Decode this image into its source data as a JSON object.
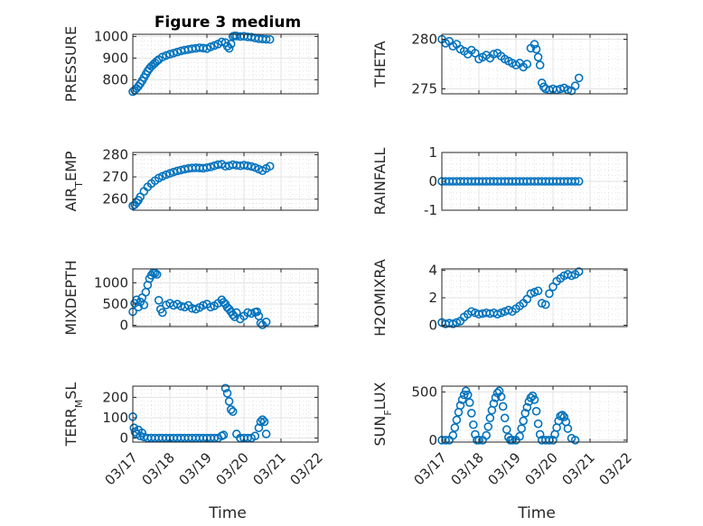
{
  "figure": {
    "title": "Figure 3 medium",
    "xlabel": "Time"
  },
  "colors": {
    "marker": "#0072BD",
    "grid": "#dcdcdc",
    "axis": "#262626"
  },
  "chart_data": [
    {
      "type": "scatter",
      "ylabel": "PRESSURE",
      "ylim": [
        735,
        1010
      ],
      "yticks": [
        800,
        900,
        1000
      ],
      "xlim": [
        "03/17",
        "03/22"
      ],
      "grid": true,
      "x": [
        0.0,
        0.05,
        0.1,
        0.15,
        0.2,
        0.25,
        0.3,
        0.35,
        0.4,
        0.45,
        0.5,
        0.55,
        0.6,
        0.65,
        0.7,
        0.8,
        0.9,
        1.0,
        1.1,
        1.2,
        1.3,
        1.4,
        1.5,
        1.6,
        1.7,
        1.8,
        1.9,
        2.0,
        2.1,
        2.2,
        2.3,
        2.4,
        2.5,
        2.55,
        2.6,
        2.65,
        2.7,
        2.75,
        2.8,
        2.9,
        3.0,
        3.1,
        3.2,
        3.3,
        3.4,
        3.5,
        3.6,
        3.7
      ],
      "y": [
        745,
        752,
        760,
        770,
        782,
        795,
        810,
        825,
        840,
        852,
        862,
        870,
        878,
        886,
        893,
        905,
        912,
        918,
        923,
        928,
        933,
        937,
        940,
        943,
        945,
        948,
        946,
        944,
        952,
        958,
        965,
        975,
        972,
        955,
        945,
        965,
        1000,
        1003,
        1002,
        1000,
        1001,
        998,
        997,
        993,
        990,
        988,
        987,
        986
      ]
    },
    {
      "type": "scatter",
      "ylabel": "THETA",
      "ylim": [
        274.5,
        280.5
      ],
      "yticks": [
        275,
        280
      ],
      "xlim": [
        "03/17",
        "03/22"
      ],
      "grid": true,
      "x": [
        0.0,
        0.1,
        0.2,
        0.3,
        0.4,
        0.5,
        0.6,
        0.7,
        0.8,
        0.9,
        1.0,
        1.1,
        1.2,
        1.3,
        1.4,
        1.5,
        1.6,
        1.7,
        1.8,
        1.9,
        2.0,
        2.1,
        2.2,
        2.3,
        2.4,
        2.5,
        2.55,
        2.6,
        2.65,
        2.7,
        2.75,
        2.8,
        2.9,
        3.0,
        3.1,
        3.2,
        3.3,
        3.4,
        3.5,
        3.6,
        3.7
      ],
      "y": [
        280.0,
        279.6,
        279.8,
        279.3,
        279.5,
        279.0,
        278.8,
        278.5,
        278.9,
        278.6,
        278.0,
        278.2,
        278.4,
        278.1,
        278.5,
        278.6,
        278.3,
        278.0,
        277.8,
        277.6,
        277.4,
        277.6,
        277.2,
        277.5,
        279.1,
        279.5,
        279.0,
        278.2,
        277.4,
        275.6,
        275.2,
        275.0,
        274.9,
        275.0,
        274.9,
        275.0,
        275.1,
        274.9,
        274.8,
        275.3,
        276.1
      ]
    },
    {
      "type": "scatter",
      "ylabel": "AIR_TEMP",
      "ylim": [
        255,
        281
      ],
      "yticks": [
        260,
        270,
        280
      ],
      "xlim": [
        "03/17",
        "03/22"
      ],
      "grid": true,
      "x": [
        0.0,
        0.05,
        0.1,
        0.15,
        0.2,
        0.3,
        0.4,
        0.5,
        0.6,
        0.7,
        0.8,
        0.9,
        1.0,
        1.1,
        1.2,
        1.3,
        1.4,
        1.5,
        1.6,
        1.7,
        1.8,
        1.9,
        2.0,
        2.1,
        2.2,
        2.3,
        2.4,
        2.5,
        2.6,
        2.7,
        2.8,
        2.9,
        3.0,
        3.1,
        3.2,
        3.3,
        3.4,
        3.5,
        3.6,
        3.7
      ],
      "y": [
        257.0,
        257.5,
        258.5,
        259.5,
        261.0,
        263.5,
        265.5,
        267.0,
        268.3,
        269.5,
        270.3,
        271.0,
        271.6,
        272.2,
        272.7,
        273.1,
        273.5,
        273.8,
        274.0,
        274.1,
        274.0,
        273.9,
        274.2,
        274.5,
        275.0,
        275.5,
        275.7,
        274.8,
        275.0,
        275.5,
        275.2,
        275.0,
        275.3,
        275.0,
        274.7,
        274.2,
        273.5,
        272.8,
        273.8,
        274.8
      ]
    },
    {
      "type": "scatter",
      "ylabel": "RAINFALL",
      "ylim": [
        -1,
        1
      ],
      "yticks": [
        -1,
        0,
        1
      ],
      "xlim": [
        "03/17",
        "03/22"
      ],
      "grid": true,
      "x": [
        0.0,
        0.1,
        0.2,
        0.3,
        0.4,
        0.5,
        0.6,
        0.7,
        0.8,
        0.9,
        1.0,
        1.1,
        1.2,
        1.3,
        1.4,
        1.5,
        1.6,
        1.7,
        1.8,
        1.9,
        2.0,
        2.1,
        2.2,
        2.3,
        2.4,
        2.5,
        2.6,
        2.7,
        2.8,
        2.9,
        3.0,
        3.1,
        3.2,
        3.3,
        3.4,
        3.5,
        3.6,
        3.7
      ],
      "y": [
        0,
        0,
        0,
        0,
        0,
        0,
        0,
        0,
        0,
        0,
        0,
        0,
        0,
        0,
        0,
        0,
        0,
        0,
        0,
        0,
        0,
        0,
        0,
        0,
        0,
        0,
        0,
        0,
        0,
        0,
        0,
        0,
        0,
        0,
        0,
        0,
        0,
        0
      ]
    },
    {
      "type": "scatter",
      "ylabel": "MIXDEPTH",
      "ylim": [
        -30,
        1330
      ],
      "yticks": [
        0,
        500,
        1000
      ],
      "xlim": [
        "03/17",
        "03/22"
      ],
      "grid": true,
      "x": [
        0.0,
        0.05,
        0.1,
        0.15,
        0.2,
        0.25,
        0.3,
        0.35,
        0.4,
        0.45,
        0.5,
        0.55,
        0.6,
        0.65,
        0.7,
        0.75,
        0.8,
        0.9,
        1.0,
        1.1,
        1.2,
        1.3,
        1.4,
        1.5,
        1.6,
        1.7,
        1.8,
        1.9,
        2.0,
        2.1,
        2.2,
        2.3,
        2.4,
        2.45,
        2.5,
        2.55,
        2.6,
        2.65,
        2.7,
        2.75,
        2.8,
        2.9,
        3.0,
        3.1,
        3.2,
        3.3,
        3.35,
        3.4,
        3.45,
        3.5,
        3.6
      ],
      "y": [
        320,
        520,
        600,
        430,
        550,
        650,
        480,
        780,
        950,
        1100,
        1180,
        1240,
        1230,
        1200,
        590,
        380,
        300,
        480,
        520,
        470,
        500,
        450,
        430,
        470,
        400,
        380,
        420,
        470,
        500,
        430,
        460,
        520,
        600,
        540,
        500,
        420,
        380,
        320,
        250,
        200,
        300,
        150,
        220,
        300,
        280,
        310,
        320,
        220,
        50,
        10,
        80
      ]
    },
    {
      "type": "scatter",
      "ylabel": "H2OMIXRA",
      "ylim": [
        -0.1,
        4.1
      ],
      "yticks": [
        0,
        2,
        4
      ],
      "xlim": [
        "03/17",
        "03/22"
      ],
      "grid": true,
      "x": [
        0.0,
        0.1,
        0.2,
        0.3,
        0.4,
        0.5,
        0.6,
        0.7,
        0.8,
        0.9,
        1.0,
        1.1,
        1.2,
        1.3,
        1.4,
        1.5,
        1.6,
        1.7,
        1.8,
        1.9,
        2.0,
        2.1,
        2.2,
        2.3,
        2.4,
        2.5,
        2.6,
        2.7,
        2.8,
        2.9,
        3.0,
        3.1,
        3.2,
        3.3,
        3.4,
        3.5,
        3.6,
        3.7
      ],
      "y": [
        0.2,
        0.1,
        0.15,
        0.1,
        0.2,
        0.3,
        0.6,
        0.8,
        1.0,
        0.9,
        0.8,
        0.85,
        0.9,
        0.85,
        0.9,
        0.8,
        0.9,
        1.0,
        1.1,
        1.0,
        1.2,
        1.4,
        1.6,
        1.9,
        2.3,
        2.4,
        2.5,
        1.6,
        1.5,
        2.3,
        2.8,
        3.2,
        3.4,
        3.6,
        3.7,
        3.6,
        3.7,
        3.9
      ]
    },
    {
      "type": "scatter",
      "ylabel": "TERR_MSL",
      "ylim": [
        -20,
        255
      ],
      "yticks": [
        0,
        100,
        200
      ],
      "xlim": [
        "03/17",
        "03/22"
      ],
      "grid": true,
      "x": [
        0.0,
        0.03,
        0.06,
        0.1,
        0.15,
        0.2,
        0.25,
        0.3,
        0.4,
        0.5,
        0.6,
        0.7,
        0.8,
        0.9,
        1.0,
        1.1,
        1.2,
        1.3,
        1.4,
        1.5,
        1.6,
        1.7,
        1.8,
        1.9,
        2.0,
        2.1,
        2.2,
        2.3,
        2.4,
        2.45,
        2.5,
        2.55,
        2.6,
        2.65,
        2.7,
        2.8,
        2.9,
        3.0,
        3.1,
        3.2,
        3.3,
        3.4,
        3.45,
        3.5,
        3.55,
        3.6
      ],
      "y": [
        105,
        50,
        30,
        20,
        40,
        10,
        25,
        5,
        0,
        0,
        0,
        0,
        0,
        0,
        0,
        0,
        0,
        0,
        0,
        0,
        0,
        0,
        0,
        0,
        0,
        0,
        0,
        0,
        10,
        15,
        245,
        220,
        180,
        140,
        130,
        20,
        0,
        0,
        0,
        0,
        10,
        50,
        80,
        90,
        80,
        20
      ]
    },
    {
      "type": "scatter",
      "ylabel": "SUN_FLUX",
      "ylim": [
        -20,
        560
      ],
      "yticks": [
        0,
        500
      ],
      "xlim": [
        "03/17",
        "03/22"
      ],
      "grid": true,
      "x": [
        0.0,
        0.1,
        0.2,
        0.3,
        0.35,
        0.4,
        0.45,
        0.5,
        0.55,
        0.6,
        0.65,
        0.7,
        0.75,
        0.8,
        0.85,
        0.9,
        0.95,
        1.0,
        1.1,
        1.2,
        1.25,
        1.3,
        1.35,
        1.4,
        1.45,
        1.5,
        1.55,
        1.6,
        1.65,
        1.7,
        1.75,
        1.8,
        1.85,
        1.9,
        2.0,
        2.1,
        2.15,
        2.2,
        2.25,
        2.3,
        2.35,
        2.4,
        2.45,
        2.5,
        2.55,
        2.6,
        2.65,
        2.7,
        2.8,
        2.9,
        3.0,
        3.05,
        3.1,
        3.15,
        3.2,
        3.25,
        3.3,
        3.35,
        3.4,
        3.5,
        3.6
      ],
      "y": [
        0,
        0,
        0,
        50,
        130,
        210,
        290,
        360,
        420,
        470,
        510,
        470,
        390,
        280,
        160,
        60,
        0,
        0,
        0,
        50,
        140,
        230,
        310,
        380,
        440,
        490,
        510,
        450,
        350,
        230,
        110,
        30,
        0,
        0,
        0,
        40,
        120,
        200,
        280,
        340,
        400,
        440,
        460,
        420,
        300,
        170,
        60,
        0,
        0,
        0,
        0,
        60,
        130,
        200,
        250,
        260,
        240,
        190,
        120,
        20,
        0
      ]
    }
  ],
  "xticks": [
    "03/17",
    "03/18",
    "03/19",
    "03/20",
    "03/21",
    "03/22"
  ]
}
